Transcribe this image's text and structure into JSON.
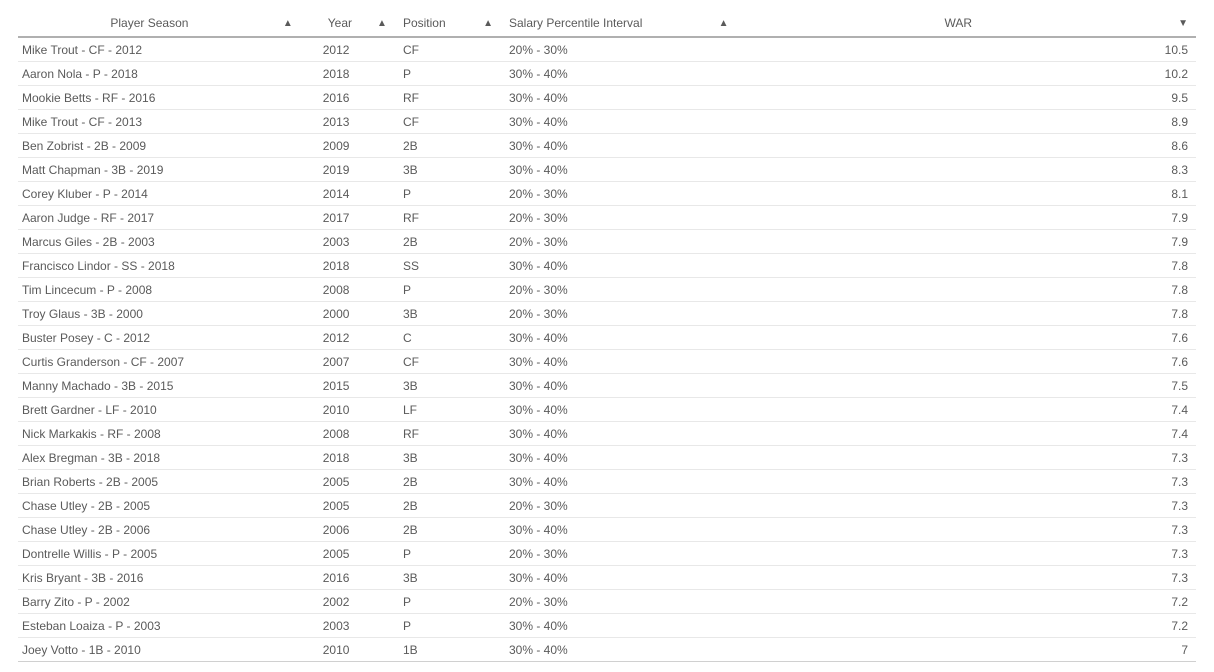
{
  "columns": [
    {
      "label": "Player Season",
      "sort": "asc"
    },
    {
      "label": "Year",
      "sort": "asc"
    },
    {
      "label": "Position",
      "sort": "asc"
    },
    {
      "label": "Salary Percentile Interval",
      "sort": "asc"
    },
    {
      "label": "WAR",
      "sort": "desc"
    }
  ],
  "sort_asc_glyph": "▲",
  "sort_desc_glyph": "▼",
  "rows": [
    {
      "player": "Mike Trout - CF - 2012",
      "year": "2012",
      "position": "CF",
      "salary": "20% - 30%",
      "war": "10.5"
    },
    {
      "player": "Aaron Nola - P - 2018",
      "year": "2018",
      "position": "P",
      "salary": "30% - 40%",
      "war": "10.2"
    },
    {
      "player": "Mookie Betts - RF - 2016",
      "year": "2016",
      "position": "RF",
      "salary": "30% - 40%",
      "war": "9.5"
    },
    {
      "player": "Mike Trout - CF - 2013",
      "year": "2013",
      "position": "CF",
      "salary": "30% - 40%",
      "war": "8.9"
    },
    {
      "player": "Ben Zobrist - 2B - 2009",
      "year": "2009",
      "position": "2B",
      "salary": "30% - 40%",
      "war": "8.6"
    },
    {
      "player": "Matt Chapman - 3B - 2019",
      "year": "2019",
      "position": "3B",
      "salary": "30% - 40%",
      "war": "8.3"
    },
    {
      "player": "Corey Kluber - P - 2014",
      "year": "2014",
      "position": "P",
      "salary": "20% - 30%",
      "war": "8.1"
    },
    {
      "player": "Aaron Judge - RF - 2017",
      "year": "2017",
      "position": "RF",
      "salary": "20% - 30%",
      "war": "7.9"
    },
    {
      "player": "Marcus Giles - 2B - 2003",
      "year": "2003",
      "position": "2B",
      "salary": "20% - 30%",
      "war": "7.9"
    },
    {
      "player": "Francisco Lindor - SS - 2018",
      "year": "2018",
      "position": "SS",
      "salary": "30% - 40%",
      "war": "7.8"
    },
    {
      "player": "Tim Lincecum - P - 2008",
      "year": "2008",
      "position": "P",
      "salary": "20% - 30%",
      "war": "7.8"
    },
    {
      "player": "Troy Glaus - 3B - 2000",
      "year": "2000",
      "position": "3B",
      "salary": "20% - 30%",
      "war": "7.8"
    },
    {
      "player": "Buster Posey - C - 2012",
      "year": "2012",
      "position": "C",
      "salary": "30% - 40%",
      "war": "7.6"
    },
    {
      "player": "Curtis Granderson - CF - 2007",
      "year": "2007",
      "position": "CF",
      "salary": "30% - 40%",
      "war": "7.6"
    },
    {
      "player": "Manny Machado - 3B - 2015",
      "year": "2015",
      "position": "3B",
      "salary": "30% - 40%",
      "war": "7.5"
    },
    {
      "player": "Brett Gardner - LF - 2010",
      "year": "2010",
      "position": "LF",
      "salary": "30% - 40%",
      "war": "7.4"
    },
    {
      "player": "Nick Markakis - RF - 2008",
      "year": "2008",
      "position": "RF",
      "salary": "30% - 40%",
      "war": "7.4"
    },
    {
      "player": "Alex Bregman - 3B - 2018",
      "year": "2018",
      "position": "3B",
      "salary": "30% - 40%",
      "war": "7.3"
    },
    {
      "player": "Brian Roberts - 2B - 2005",
      "year": "2005",
      "position": "2B",
      "salary": "30% - 40%",
      "war": "7.3"
    },
    {
      "player": "Chase Utley - 2B - 2005",
      "year": "2005",
      "position": "2B",
      "salary": "20% - 30%",
      "war": "7.3"
    },
    {
      "player": "Chase Utley - 2B - 2006",
      "year": "2006",
      "position": "2B",
      "salary": "30% - 40%",
      "war": "7.3"
    },
    {
      "player": "Dontrelle Willis - P - 2005",
      "year": "2005",
      "position": "P",
      "salary": "20% - 30%",
      "war": "7.3"
    },
    {
      "player": "Kris Bryant - 3B - 2016",
      "year": "2016",
      "position": "3B",
      "salary": "30% - 40%",
      "war": "7.3"
    },
    {
      "player": "Barry Zito - P - 2002",
      "year": "2002",
      "position": "P",
      "salary": "20% - 30%",
      "war": "7.2"
    },
    {
      "player": "Esteban Loaiza - P - 2003",
      "year": "2003",
      "position": "P",
      "salary": "30% - 40%",
      "war": "7.2"
    },
    {
      "player": "Joey Votto - 1B - 2010",
      "year": "2010",
      "position": "1B",
      "salary": "30% - 40%",
      "war": "7"
    }
  ]
}
